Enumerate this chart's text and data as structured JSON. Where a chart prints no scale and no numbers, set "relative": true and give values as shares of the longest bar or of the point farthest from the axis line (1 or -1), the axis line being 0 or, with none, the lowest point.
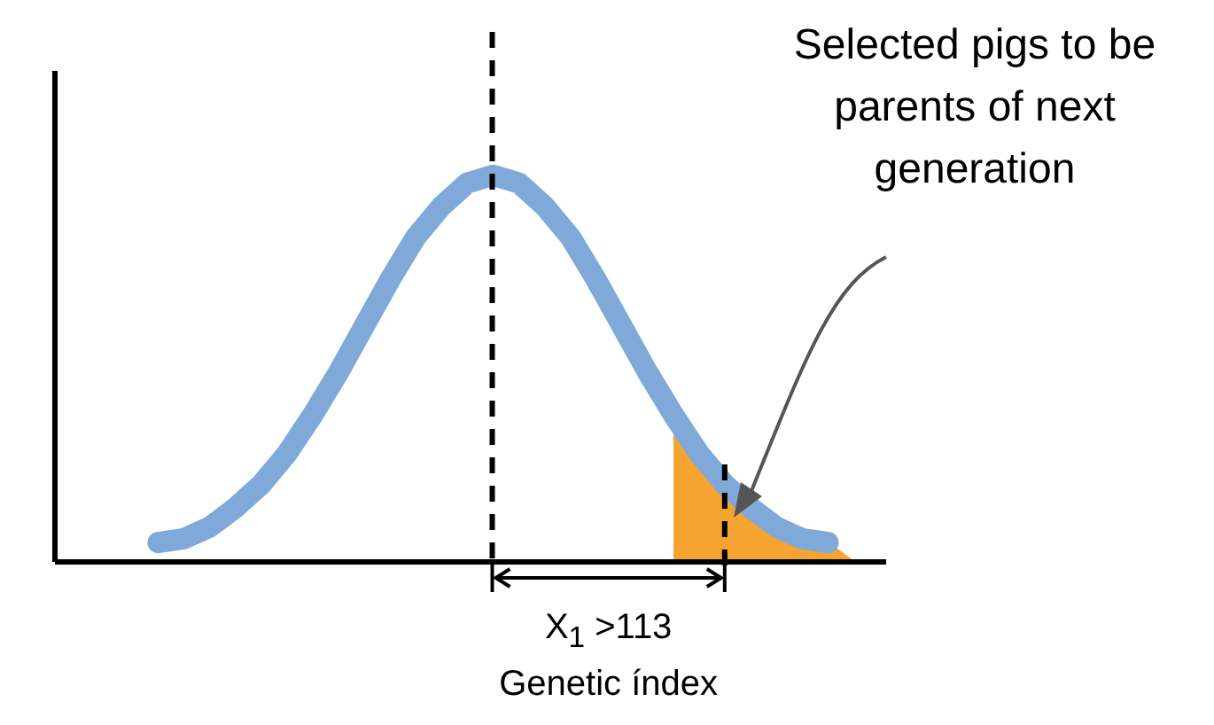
{
  "chart_data": {
    "type": "line",
    "relative": true,
    "tick_labels": false,
    "categories": [
      null,
      null,
      null,
      null,
      null,
      null,
      null,
      null,
      null,
      null,
      null,
      null,
      null,
      null,
      null,
      null,
      null,
      null,
      null,
      null,
      null,
      null,
      null,
      null,
      null,
      null,
      null,
      null
    ],
    "series": [
      {
        "type": "area",
        "color": "#f5a431",
        "values": [
          null,
          null,
          null,
          null,
          null,
          null,
          null,
          null,
          null,
          null,
          null,
          null,
          null,
          null,
          null,
          null,
          null,
          null,
          null,
          null,
          0.38,
          0.28,
          0.2,
          0.14,
          0.09,
          0.06,
          0.05,
          0
        ]
      },
      {
        "color": "#7ea9d8",
        "values": [
          0.05,
          0.06,
          0.09,
          0.14,
          0.2,
          0.28,
          0.38,
          0.49,
          0.61,
          0.73,
          0.84,
          0.92,
          0.98,
          1,
          0.98,
          0.92,
          0.84,
          0.73,
          0.61,
          0.49,
          0.38,
          0.28,
          0.2,
          0.14,
          0.09,
          0.06,
          0.05,
          null
        ]
      }
    ],
    "annotations": [
      "Selected pigs to be parents of next generation",
      "X$_{1}$ >113",
      "Genetic índex"
    ]
  }
}
